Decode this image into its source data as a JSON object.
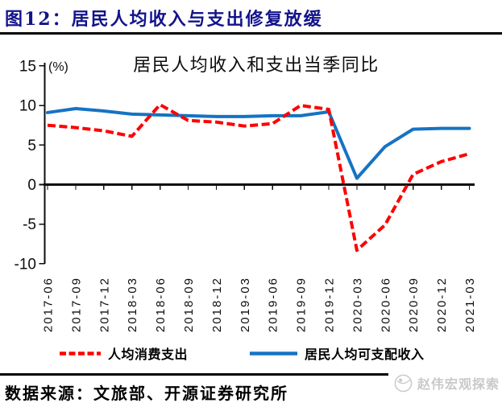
{
  "header": {
    "title": "图12：居民人均收入与支出修复放缓"
  },
  "chart_data": {
    "type": "line",
    "title": "居民人均收入和支出当季同比",
    "unit_label": "(%)",
    "categories": [
      "2017-06",
      "2017-09",
      "2017-12",
      "2018-03",
      "2018-06",
      "2018-09",
      "2018-12",
      "2019-03",
      "2019-06",
      "2019-09",
      "2019-12",
      "2020-03",
      "2020-06",
      "2020-09",
      "2020-12",
      "2021-03"
    ],
    "series": [
      {
        "name": "人均消费支出",
        "color": "#FE0000",
        "style": "dashed",
        "values": [
          7.5,
          7.2,
          6.8,
          6.1,
          10.1,
          8.1,
          7.9,
          7.4,
          7.7,
          10.0,
          9.5,
          -8.3,
          -5.1,
          1.3,
          2.9,
          3.9
        ]
      },
      {
        "name": "居民人均可支配收入",
        "color": "#1673C2",
        "style": "solid",
        "values": [
          9.1,
          9.6,
          9.3,
          8.9,
          8.8,
          8.7,
          8.6,
          8.6,
          8.7,
          8.7,
          9.2,
          0.8,
          4.8,
          7.0,
          7.1,
          7.1
        ]
      }
    ],
    "ylim": [
      -10,
      15
    ],
    "yticks": [
      15,
      10,
      5,
      0,
      -5,
      -10
    ],
    "grid": false,
    "legend_position": "bottom"
  },
  "footer": {
    "source": "数据来源：文旅部、开源证券研究所",
    "watermark": "赵伟宏观探索"
  },
  "colors": {
    "title": "#13138B",
    "axis": "#0d0d0d",
    "watermark": "#C9C9C9"
  }
}
